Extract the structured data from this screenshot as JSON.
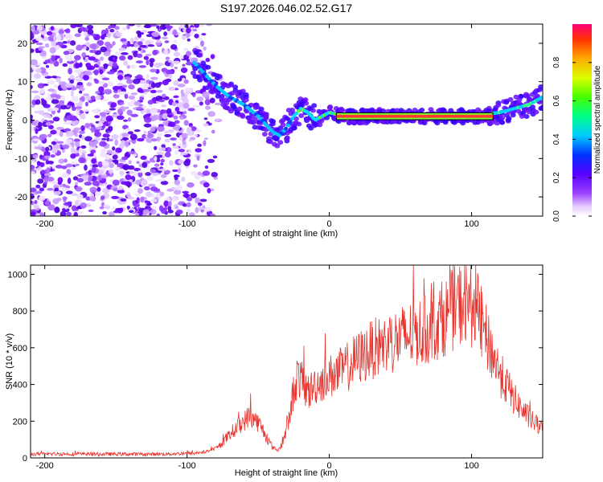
{
  "title": "S197.2026.046.02.52.G17",
  "chart_data": [
    {
      "type": "heatmap",
      "name": "spectrogram",
      "xlabel": "Height of straight line (km)",
      "ylabel": "Frequency (Hz)",
      "xlim": [
        -210,
        150
      ],
      "ylim": [
        -25,
        25
      ],
      "xticks": [
        -200,
        -100,
        0,
        100
      ],
      "yticks": [
        -20,
        -10,
        0,
        10,
        20
      ],
      "colorbar": {
        "label": "Normalized spectral amplitude",
        "range": [
          0,
          1
        ],
        "ticks": [
          0.0,
          0.2,
          0.4,
          0.6,
          0.8
        ]
      },
      "ridge": {
        "description": "dominant frequency track",
        "points": [
          [
            -95,
            15
          ],
          [
            -80,
            9
          ],
          [
            -70,
            6
          ],
          [
            -60,
            4
          ],
          [
            -50,
            1
          ],
          [
            -45,
            -1
          ],
          [
            -40,
            -3
          ],
          [
            -35,
            -4
          ],
          [
            -30,
            -2
          ],
          [
            -25,
            1
          ],
          [
            -20,
            3
          ],
          [
            -15,
            2
          ],
          [
            -10,
            0
          ],
          [
            -5,
            1
          ],
          [
            0,
            2
          ],
          [
            10,
            1
          ],
          [
            50,
            1
          ],
          [
            100,
            1
          ],
          [
            120,
            2
          ],
          [
            140,
            4
          ],
          [
            150,
            6
          ]
        ]
      }
    },
    {
      "type": "line",
      "name": "snr",
      "xlabel": "Height of straight line (km)",
      "ylabel": "SNR (10 * v/v)",
      "xlim": [
        -210,
        150
      ],
      "ylim": [
        0,
        1050
      ],
      "xticks": [
        -200,
        -100,
        0,
        100
      ],
      "yticks": [
        0,
        200,
        400,
        600,
        800,
        1000
      ],
      "color": "#e8322c",
      "series": [
        {
          "name": "SNR",
          "x": [
            -210,
            -190,
            -170,
            -150,
            -130,
            -110,
            -95,
            -85,
            -78,
            -72,
            -66,
            -60,
            -56,
            -52,
            -48,
            -44,
            -40,
            -36,
            -33,
            -30,
            -27,
            -25,
            -22,
            -20,
            -17,
            -14,
            -10,
            -5,
            0,
            10,
            20,
            30,
            40,
            50,
            60,
            70,
            80,
            90,
            95,
            100,
            105,
            110,
            115,
            120,
            130,
            140,
            150
          ],
          "values": [
            20,
            22,
            20,
            21,
            20,
            22,
            25,
            35,
            60,
            110,
            160,
            200,
            230,
            210,
            170,
            110,
            60,
            40,
            80,
            150,
            260,
            380,
            450,
            420,
            380,
            360,
            400,
            420,
            440,
            480,
            540,
            590,
            620,
            650,
            680,
            700,
            760,
            830,
            850,
            830,
            780,
            660,
            560,
            460,
            320,
            220,
            150
          ]
        }
      ]
    }
  ]
}
